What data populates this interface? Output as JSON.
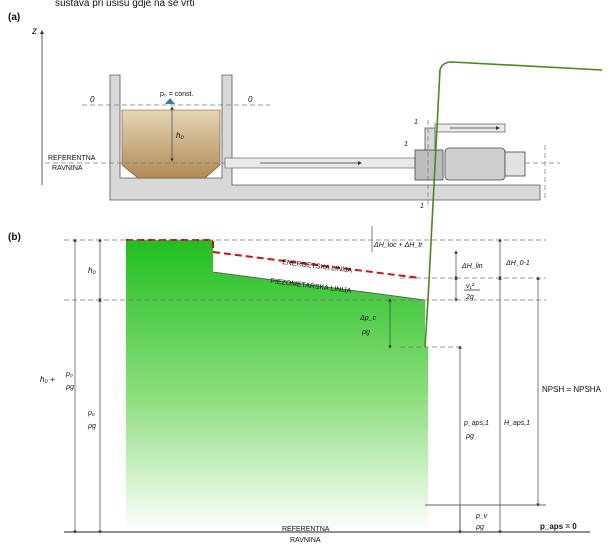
{
  "top_text": "sustava pri usisu gdje na se vrti",
  "panel_a": {
    "label": "(a)",
    "z_axis": "z",
    "level_left": "0",
    "level_right": "0",
    "pressure_label": "p₀ = const.",
    "h0": "h₀",
    "ref_line_1": "REFERENTNA",
    "ref_line_2": "RAVNINA",
    "pump_label": "1",
    "pump_label_top": "1",
    "pump_label_bottom": "1"
  },
  "panel_b": {
    "label": "(b)",
    "h0": "h₀",
    "h0_plus": "h₀ +",
    "pa_num": "p₀",
    "rho_g": "ρg",
    "energy_line": "ENERGETSKA LINIJA",
    "piezo_line": "PIEZOMETARSKA LINIJA",
    "dH_loss": "ΔH_loc + ΔH_tr",
    "dH_lin": "ΔH_lin",
    "dH_01": "ΔH_0-1",
    "v1": "v₁²",
    "two_g": "2g",
    "dp": "Δp_c",
    "p_aps1": "p_aps,1",
    "H_aps1": "H_aps,1",
    "npsh": "NPSH = NPSHA",
    "pv": "p_v",
    "p_aps0": "p_aps = 0",
    "ref_line_1": "REFERENTNA",
    "ref_line_2": "RAVNINA"
  },
  "colors": {
    "fill_green": "#2cc02c",
    "energy_line": "#d01010",
    "pipe_green": "#4a8a1a",
    "liquid": "#c9a877",
    "concrete": "#d8d8d8"
  }
}
